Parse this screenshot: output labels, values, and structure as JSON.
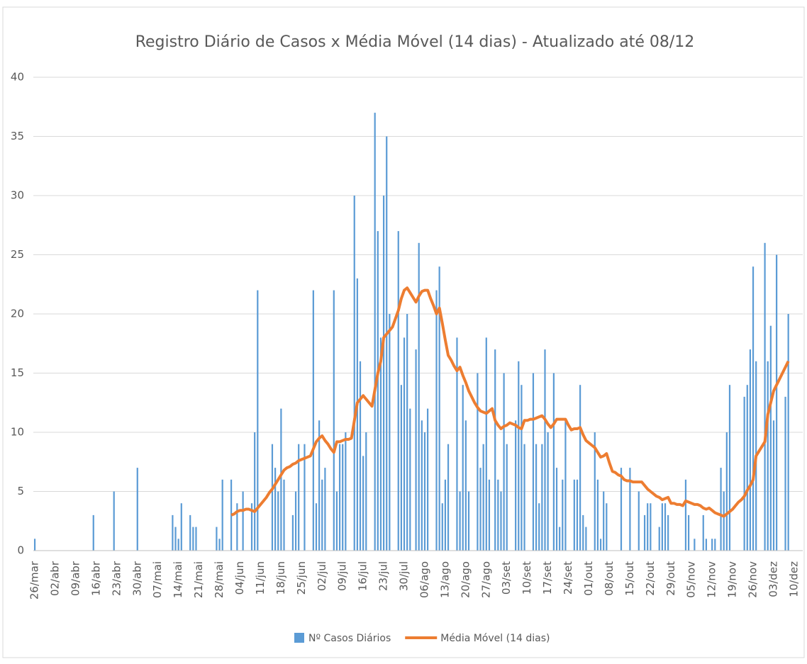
{
  "chart_data": {
    "type": "combo",
    "title": "Registro Diário de Casos x Média Móvel (14 dias) - Atualizado até 08/12",
    "categories": [
      "26/mar",
      null,
      null,
      null,
      null,
      null,
      null,
      "02/abr",
      null,
      null,
      null,
      null,
      null,
      null,
      "09/abr",
      null,
      null,
      null,
      null,
      null,
      null,
      "16/abr",
      null,
      null,
      null,
      null,
      null,
      null,
      "23/abr",
      null,
      null,
      null,
      null,
      null,
      null,
      "30/abr",
      null,
      null,
      null,
      null,
      null,
      null,
      "07/mai",
      null,
      null,
      null,
      null,
      null,
      null,
      "14/mai",
      null,
      null,
      null,
      null,
      null,
      null,
      "21/mai",
      null,
      null,
      null,
      null,
      null,
      null,
      "28/mai",
      null,
      null,
      null,
      null,
      null,
      null,
      "04/jun",
      null,
      null,
      null,
      null,
      null,
      null,
      "11/jun",
      null,
      null,
      null,
      null,
      null,
      null,
      "18/jun",
      null,
      null,
      null,
      null,
      null,
      null,
      "25/jun",
      null,
      null,
      null,
      null,
      null,
      null,
      "02/jul",
      null,
      null,
      null,
      null,
      null,
      null,
      "09/jul",
      null,
      null,
      null,
      null,
      null,
      null,
      "16/jul",
      null,
      null,
      null,
      null,
      null,
      null,
      "23/jul",
      null,
      null,
      null,
      null,
      null,
      null,
      "30/jul",
      null,
      null,
      null,
      null,
      null,
      null,
      "06/ago",
      null,
      null,
      null,
      null,
      null,
      null,
      "13/ago",
      null,
      null,
      null,
      null,
      null,
      null,
      "20/ago",
      null,
      null,
      null,
      null,
      null,
      null,
      "27/ago",
      null,
      null,
      null,
      null,
      null,
      null,
      "03/set",
      null,
      null,
      null,
      null,
      null,
      null,
      "10/set",
      null,
      null,
      null,
      null,
      null,
      null,
      "17/set",
      null,
      null,
      null,
      null,
      null,
      null,
      "24/set",
      null,
      null,
      null,
      null,
      null,
      null,
      "01/out",
      null,
      null,
      null,
      null,
      null,
      null,
      "08/out",
      null,
      null,
      null,
      null,
      null,
      null,
      "15/out",
      null,
      null,
      null,
      null,
      null,
      null,
      "22/out",
      null,
      null,
      null,
      null,
      null,
      null,
      "29/out",
      null,
      null,
      null,
      null,
      null,
      null,
      "05/nov",
      null,
      null,
      null,
      null,
      null,
      null,
      "12/nov",
      null,
      null,
      null,
      null,
      null,
      null,
      "19/nov",
      null,
      null,
      null,
      null,
      null,
      null,
      "26/nov",
      null,
      null,
      null,
      null,
      null,
      null,
      "03/dez",
      null,
      null,
      null,
      null,
      null,
      null,
      "10/dez"
    ],
    "series": [
      {
        "name": "Nº Casos Diários",
        "type": "bar",
        "color": "#5b9bd5",
        "values": [
          1,
          0,
          0,
          0,
          0,
          0,
          0,
          0,
          0,
          0,
          0,
          0,
          0,
          0,
          0,
          0,
          0,
          0,
          0,
          0,
          3,
          0,
          0,
          0,
          0,
          0,
          0,
          5,
          0,
          0,
          0,
          0,
          0,
          0,
          0,
          7,
          0,
          0,
          0,
          0,
          0,
          0,
          0,
          0,
          0,
          0,
          0,
          3,
          2,
          1,
          4,
          0,
          0,
          3,
          2,
          2,
          0,
          0,
          0,
          0,
          0,
          0,
          2,
          1,
          6,
          0,
          0,
          6,
          0,
          4,
          0,
          5,
          0,
          0,
          4,
          10,
          22,
          0,
          0,
          0,
          0,
          9,
          7,
          5,
          12,
          6,
          0,
          0,
          3,
          5,
          9,
          0,
          9,
          0,
          0,
          22,
          4,
          11,
          6,
          7,
          0,
          0,
          22,
          5,
          9,
          9,
          10,
          0,
          0,
          30,
          23,
          16,
          8,
          10,
          0,
          0,
          37,
          27,
          18,
          30,
          35,
          20,
          0,
          0,
          27,
          14,
          18,
          20,
          12,
          0,
          17,
          26,
          11,
          10,
          12,
          0,
          0,
          22,
          24,
          4,
          6,
          9,
          0,
          0,
          18,
          5,
          14,
          11,
          5,
          0,
          0,
          15,
          7,
          9,
          18,
          6,
          0,
          17,
          6,
          5,
          15,
          9,
          0,
          0,
          11,
          16,
          14,
          9,
          0,
          0,
          15,
          9,
          4,
          9,
          17,
          10,
          0,
          15,
          7,
          2,
          6,
          11,
          0,
          0,
          6,
          6,
          14,
          3,
          2,
          0,
          0,
          10,
          6,
          1,
          5,
          4,
          0,
          0,
          0,
          0,
          7,
          0,
          0,
          7,
          0,
          0,
          5,
          0,
          3,
          4,
          4,
          0,
          0,
          2,
          4,
          4,
          3,
          0,
          0,
          0,
          0,
          0,
          6,
          3,
          0,
          1,
          0,
          0,
          3,
          1,
          0,
          1,
          1,
          0,
          7,
          5,
          10,
          14,
          0,
          0,
          0,
          0,
          13,
          14,
          17,
          24,
          16,
          0,
          0,
          26,
          16,
          19,
          11,
          25,
          0,
          0,
          13,
          20,
          null,
          null
        ]
      },
      {
        "name": "Média Móvel (14 dias)",
        "type": "line",
        "color": "#ed7d31",
        "values": [
          null,
          null,
          null,
          null,
          null,
          null,
          null,
          null,
          null,
          null,
          null,
          null,
          null,
          null,
          null,
          null,
          null,
          null,
          null,
          null,
          null,
          null,
          null,
          null,
          null,
          null,
          null,
          null,
          null,
          null,
          null,
          null,
          null,
          null,
          null,
          null,
          null,
          null,
          null,
          null,
          null,
          null,
          null,
          null,
          null,
          null,
          null,
          null,
          null,
          null,
          null,
          null,
          null,
          null,
          null,
          null,
          null,
          null,
          null,
          null,
          null,
          null,
          null,
          null,
          null,
          null,
          null,
          3.0,
          3.1,
          3.3,
          3.4,
          3.4,
          3.5,
          3.5,
          3.4,
          3.3,
          3.6,
          3.9,
          4.2,
          4.5,
          4.9,
          5.2,
          5.6,
          6.0,
          6.4,
          6.8,
          7.0,
          7.1,
          7.3,
          7.4,
          7.6,
          7.7,
          7.8,
          7.9,
          8.0,
          8.6,
          9.2,
          9.5,
          9.7,
          9.3,
          9.0,
          8.6,
          8.3,
          9.2,
          9.2,
          9.3,
          9.4,
          9.4,
          9.5,
          11.0,
          12.5,
          12.8,
          13.1,
          12.8,
          12.5,
          12.2,
          13.6,
          15.0,
          16.0,
          18.0,
          18.3,
          18.6,
          18.9,
          19.6,
          20.3,
          21.3,
          22.0,
          22.2,
          21.8,
          21.4,
          21.0,
          21.5,
          21.9,
          22.0,
          22.0,
          21.3,
          20.7,
          20.0,
          20.5,
          19.2,
          17.8,
          16.5,
          16.1,
          15.6,
          15.2,
          15.5,
          14.8,
          14.2,
          13.5,
          13.0,
          12.5,
          12.1,
          11.8,
          11.7,
          11.6,
          11.8,
          12.0,
          11.0,
          10.6,
          10.3,
          10.5,
          10.6,
          10.8,
          10.7,
          10.6,
          10.4,
          10.3,
          11.0,
          11.0,
          11.1,
          11.1,
          11.2,
          11.3,
          11.4,
          11.1,
          10.7,
          10.4,
          10.7,
          11.1,
          11.1,
          11.1,
          11.1,
          10.6,
          10.2,
          10.3,
          10.3,
          10.4,
          9.8,
          9.3,
          9.1,
          8.9,
          8.7,
          8.3,
          7.9,
          8.0,
          8.2,
          7.4,
          6.7,
          6.6,
          6.4,
          6.3,
          6.0,
          5.9,
          5.9,
          5.8,
          5.8,
          5.8,
          5.8,
          5.5,
          5.2,
          5.0,
          4.8,
          4.6,
          4.5,
          4.3,
          4.4,
          4.5,
          4.0,
          4.0,
          3.9,
          3.9,
          3.8,
          4.2,
          4.1,
          4.0,
          3.9,
          3.9,
          3.8,
          3.6,
          3.5,
          3.6,
          3.4,
          3.2,
          3.1,
          3.0,
          2.9,
          3.1,
          3.3,
          3.5,
          3.8,
          4.1,
          4.3,
          4.6,
          5.1,
          5.5,
          6.0,
          8.0,
          8.4,
          8.8,
          9.2,
          11.5,
          12.5,
          13.5,
          14.0,
          14.5,
          15.0,
          15.5,
          16.0,
          null,
          null
        ]
      }
    ],
    "ylim": [
      0,
      40
    ],
    "yticks": [
      0,
      5,
      10,
      15,
      20,
      25,
      30,
      35,
      40
    ],
    "grid": true,
    "legend": "bottom"
  }
}
